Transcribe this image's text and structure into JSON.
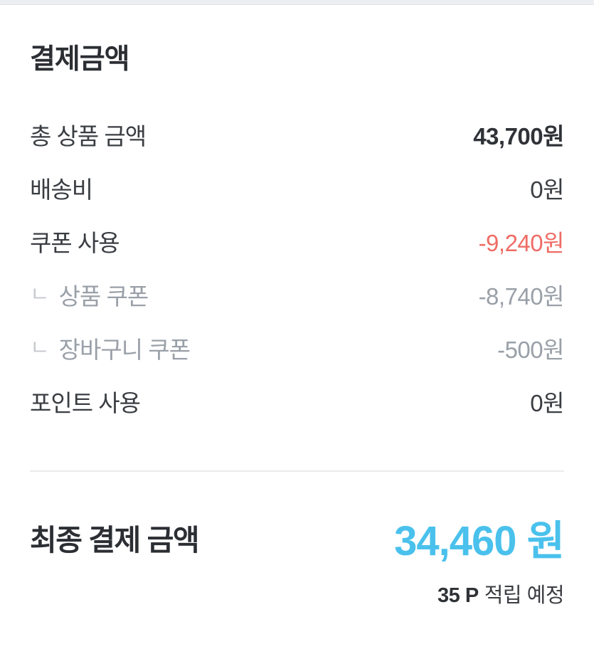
{
  "section": {
    "title": "결제금액"
  },
  "summary": {
    "rows": [
      {
        "label": "총 상품 금액",
        "value": "43,700원"
      },
      {
        "label": "배송비",
        "value": "0원"
      },
      {
        "label": "쿠폰 사용",
        "value": "-9,240원"
      },
      {
        "prefix": "ㄴ",
        "label": "상품 쿠폰",
        "value": "-8,740원"
      },
      {
        "prefix": "ㄴ",
        "label": "장바구니 쿠폰",
        "value": "-500원"
      },
      {
        "label": "포인트 사용",
        "value": "0원"
      }
    ]
  },
  "total": {
    "label": "최종 결제 금액",
    "value": "34,460 원"
  },
  "points": {
    "amount": "35 P",
    "note": "적립 예정"
  },
  "colors": {
    "accent_blue": "#4ac1ec",
    "negative_red": "#ef6c66",
    "muted_gray": "#9aa0a8",
    "text_dark": "#3a3d42",
    "divider_gray": "#ebebeb"
  }
}
